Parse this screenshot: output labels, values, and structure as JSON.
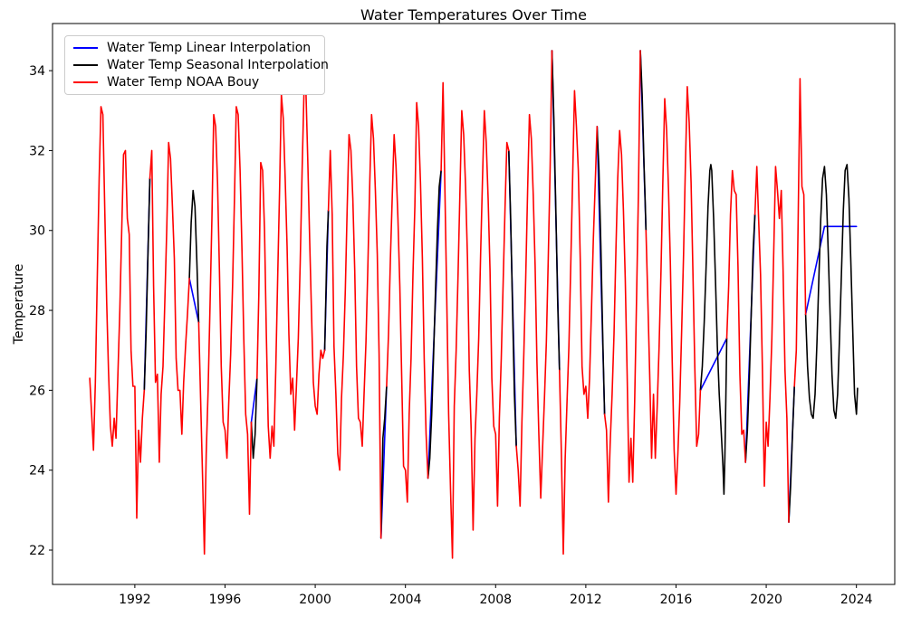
{
  "figure": {
    "title": "Water Temperatures Over Time",
    "ylabel": "Temperature"
  },
  "chart_data": {
    "type": "line",
    "title": "Water Temperatures Over Time",
    "xlabel": "",
    "ylabel": "Temperature",
    "grid": false,
    "legend_position": "upper left",
    "xlim": [
      1988.35,
      2025.7
    ],
    "ylim": [
      21.14,
      35.18
    ],
    "xticks": [
      1992,
      1996,
      2000,
      2004,
      2008,
      2012,
      2016,
      2020,
      2024
    ],
    "yticks": [
      22,
      24,
      26,
      28,
      30,
      32,
      34
    ],
    "series": [
      {
        "name": "Water Temp Linear Interpolation",
        "color": "#0000ff",
        "segments": [
          [
            [
              1992.417,
              26.0
            ],
            [
              1992.667,
              31.3
            ]
          ],
          [
            [
              1994.417,
              28.8
            ],
            [
              1994.833,
              27.7
            ]
          ],
          [
            [
              1997.167,
              25.2
            ],
            [
              1997.417,
              26.3
            ]
          ],
          [
            [
              2000.417,
              27.0
            ],
            [
              2000.583,
              30.5
            ]
          ],
          [
            [
              2002.917,
              22.3
            ],
            [
              2003.167,
              26.1
            ]
          ],
          [
            [
              2005.0,
              23.8
            ],
            [
              2005.583,
              31.5
            ]
          ],
          [
            [
              2008.583,
              32.0
            ],
            [
              2008.917,
              24.6
            ]
          ],
          [
            [
              2010.5,
              34.5
            ],
            [
              2010.833,
              26.5
            ]
          ],
          [
            [
              2012.5,
              32.6
            ],
            [
              2012.833,
              25.4
            ]
          ],
          [
            [
              2014.417,
              34.5
            ],
            [
              2014.667,
              30.0
            ]
          ],
          [
            [
              2017.083,
              26.0
            ],
            [
              2018.25,
              27.3
            ]
          ],
          [
            [
              2019.083,
              24.2
            ],
            [
              2019.5,
              30.4
            ]
          ],
          [
            [
              2021.0,
              22.7
            ],
            [
              2021.25,
              26.1
            ]
          ],
          [
            [
              2021.75,
              27.9
            ],
            [
              2022.583,
              30.1
            ]
          ],
          [
            [
              2022.583,
              30.1
            ],
            [
              2024.0,
              30.1
            ]
          ]
        ]
      },
      {
        "name": "Water Temp Seasonal Interpolation",
        "color": "#000000",
        "segments": [
          [
            [
              1992.417,
              26.0
            ],
            [
              1992.5,
              27.4
            ],
            [
              1992.583,
              29.4
            ],
            [
              1992.667,
              31.3
            ]
          ],
          [
            [
              1994.417,
              28.8
            ],
            [
              1994.5,
              30.2
            ],
            [
              1994.583,
              31.0
            ],
            [
              1994.667,
              30.6
            ],
            [
              1994.75,
              29.2
            ],
            [
              1994.833,
              27.7
            ]
          ],
          [
            [
              1997.167,
              25.2
            ],
            [
              1997.25,
              24.3
            ],
            [
              1997.333,
              24.9
            ],
            [
              1997.417,
              26.3
            ]
          ],
          [
            [
              2000.417,
              27.0
            ],
            [
              2000.467,
              28.2
            ],
            [
              2000.517,
              29.6
            ],
            [
              2000.583,
              30.5
            ]
          ],
          [
            [
              2002.917,
              22.3
            ],
            [
              2003.0,
              24.8
            ],
            [
              2003.083,
              25.3
            ],
            [
              2003.167,
              26.1
            ]
          ],
          [
            [
              2005.0,
              23.8
            ],
            [
              2005.083,
              24.3
            ],
            [
              2005.167,
              25.4
            ],
            [
              2005.25,
              26.9
            ],
            [
              2005.333,
              28.5
            ],
            [
              2005.417,
              30.0
            ],
            [
              2005.5,
              31.1
            ],
            [
              2005.583,
              31.5
            ]
          ],
          [
            [
              2008.583,
              32.0
            ],
            [
              2008.667,
              30.3
            ],
            [
              2008.75,
              28.0
            ],
            [
              2008.833,
              25.9
            ],
            [
              2008.917,
              24.6
            ]
          ],
          [
            [
              2010.5,
              34.5
            ],
            [
              2010.583,
              32.8
            ],
            [
              2010.667,
              30.6
            ],
            [
              2010.75,
              28.2
            ],
            [
              2010.833,
              26.5
            ]
          ],
          [
            [
              2012.5,
              32.6
            ],
            [
              2012.583,
              31.5
            ],
            [
              2012.667,
              29.6
            ],
            [
              2012.75,
              27.3
            ],
            [
              2012.833,
              25.4
            ]
          ],
          [
            [
              2014.417,
              34.5
            ],
            [
              2014.5,
              33.4
            ],
            [
              2014.583,
              31.6
            ],
            [
              2014.625,
              30.9
            ],
            [
              2014.667,
              30.0
            ]
          ],
          [
            [
              2017.083,
              26.0
            ],
            [
              2017.167,
              26.6
            ],
            [
              2017.25,
              27.7
            ],
            [
              2017.333,
              29.1
            ],
            [
              2017.417,
              30.6
            ],
            [
              2017.5,
              31.5
            ],
            [
              2017.542,
              31.65
            ],
            [
              2017.583,
              31.5
            ],
            [
              2017.667,
              30.3
            ],
            [
              2017.75,
              28.8
            ],
            [
              2017.833,
              27.1
            ],
            [
              2017.917,
              25.9
            ],
            [
              2018.0,
              25.0
            ],
            [
              2018.083,
              24.1
            ],
            [
              2018.125,
              23.4
            ],
            [
              2018.167,
              24.3
            ],
            [
              2018.208,
              25.8
            ],
            [
              2018.25,
              27.3
            ]
          ],
          [
            [
              2019.083,
              24.2
            ],
            [
              2019.167,
              25.0
            ],
            [
              2019.25,
              26.3
            ],
            [
              2019.333,
              27.9
            ],
            [
              2019.417,
              29.5
            ],
            [
              2019.5,
              30.4
            ]
          ],
          [
            [
              2021.0,
              22.7
            ],
            [
              2021.083,
              23.6
            ],
            [
              2021.167,
              24.9
            ],
            [
              2021.25,
              26.1
            ]
          ],
          [
            [
              2021.75,
              27.9
            ],
            [
              2021.833,
              26.6
            ],
            [
              2021.917,
              25.8
            ],
            [
              2022.0,
              25.4
            ],
            [
              2022.083,
              25.3
            ],
            [
              2022.167,
              25.9
            ],
            [
              2022.25,
              27.2
            ],
            [
              2022.333,
              28.8
            ],
            [
              2022.417,
              30.3
            ],
            [
              2022.5,
              31.3
            ],
            [
              2022.583,
              31.6
            ],
            [
              2022.667,
              30.9
            ],
            [
              2022.75,
              29.5
            ],
            [
              2022.833,
              27.9
            ],
            [
              2022.917,
              26.4
            ],
            [
              2023.0,
              25.5
            ],
            [
              2023.083,
              25.3
            ],
            [
              2023.167,
              25.9
            ],
            [
              2023.25,
              27.3
            ],
            [
              2023.333,
              28.9
            ],
            [
              2023.417,
              30.5
            ],
            [
              2023.5,
              31.5
            ],
            [
              2023.583,
              31.65
            ],
            [
              2023.667,
              30.8
            ],
            [
              2023.75,
              29.3
            ],
            [
              2023.833,
              27.6
            ],
            [
              2023.917,
              25.9
            ],
            [
              2024.0,
              25.4
            ],
            [
              2024.05,
              26.05
            ]
          ]
        ]
      },
      {
        "name": "Water Temp NOAA Bouy",
        "color": "#ff0000",
        "x0": 1990.0,
        "dx": 0.0833333,
        "values": [
          26.3,
          25.4,
          24.5,
          26.2,
          28.8,
          31.3,
          33.1,
          32.9,
          30.5,
          28.2,
          26.5,
          25.1,
          24.6,
          25.3,
          24.8,
          26.4,
          28.0,
          30.0,
          31.9,
          32.0,
          30.3,
          29.9,
          27.0,
          26.1,
          26.1,
          22.8,
          25.0,
          24.2,
          25.3,
          26.0,
          null,
          null,
          31.3,
          32.0,
          28.6,
          26.2,
          26.4,
          24.2,
          25.9,
          26.6,
          28.3,
          30.1,
          32.2,
          31.8,
          30.6,
          29.3,
          26.8,
          26.0,
          26.0,
          24.9,
          26.2,
          27.1,
          27.9,
          28.8,
          null,
          null,
          null,
          null,
          27.7,
          25.8,
          23.9,
          21.9,
          24.4,
          26.0,
          28.1,
          30.3,
          32.9,
          32.6,
          31.2,
          29.0,
          26.6,
          25.2,
          25.0,
          24.3,
          25.7,
          26.9,
          28.6,
          30.8,
          33.1,
          32.9,
          31.5,
          29.5,
          27.3,
          25.4,
          24.9,
          22.9,
          25.2,
          null,
          null,
          26.3,
          28.4,
          31.7,
          31.5,
          30.0,
          27.4,
          25.1,
          24.3,
          25.1,
          24.6,
          26.5,
          28.8,
          31.0,
          33.4,
          32.8,
          31.3,
          29.6,
          27.4,
          25.9,
          26.3,
          25.0,
          26.1,
          27.3,
          29.2,
          31.5,
          33.4,
          33.6,
          31.8,
          29.8,
          28.0,
          26.2,
          25.6,
          25.4,
          26.4,
          27.0,
          26.8,
          27.0,
          null,
          30.5,
          32.0,
          30.4,
          27.1,
          25.9,
          24.4,
          24.0,
          25.8,
          26.9,
          28.5,
          30.6,
          32.4,
          32.0,
          30.8,
          29.0,
          26.6,
          25.3,
          25.2,
          24.6,
          25.9,
          27.2,
          29.1,
          31.2,
          32.9,
          32.3,
          31.0,
          29.4,
          26.9,
          22.3,
          null,
          null,
          26.1,
          27.4,
          29.3,
          30.9,
          32.4,
          31.6,
          30.3,
          28.6,
          26.4,
          24.1,
          24.0,
          23.2,
          25.4,
          26.8,
          28.9,
          30.6,
          33.2,
          32.6,
          31.2,
          29.3,
          26.8,
          24.9,
          23.8,
          null,
          null,
          null,
          null,
          null,
          null,
          31.5,
          33.7,
          31.0,
          28.3,
          25.4,
          23.5,
          21.8,
          25.6,
          27.0,
          28.9,
          31.0,
          33.0,
          32.4,
          31.1,
          29.3,
          26.5,
          25.0,
          22.5,
          24.8,
          25.9,
          27.3,
          29.4,
          31.3,
          33.0,
          32.2,
          30.8,
          29.0,
          26.3,
          25.1,
          24.9,
          23.1,
          25.3,
          26.8,
          28.7,
          30.6,
          32.2,
          32.0,
          null,
          null,
          null,
          24.6,
          24.0,
          23.1,
          25.2,
          26.9,
          28.8,
          31.0,
          32.9,
          32.3,
          30.9,
          29.1,
          26.7,
          24.9,
          23.3,
          24.6,
          25.8,
          27.2,
          29.3,
          31.6,
          34.5,
          null,
          null,
          null,
          26.5,
          24.4,
          21.9,
          24.3,
          25.7,
          27.1,
          29.2,
          31.4,
          33.5,
          32.6,
          31.5,
          29.3,
          26.6,
          25.9,
          26.1,
          25.3,
          26.3,
          28.0,
          29.8,
          31.2,
          32.6,
          null,
          null,
          null,
          25.4,
          25.0,
          23.2,
          24.7,
          25.9,
          27.4,
          29.5,
          31.3,
          32.5,
          31.9,
          30.5,
          28.8,
          26.4,
          23.7,
          24.8,
          23.7,
          25.7,
          28.3,
          31.0,
          34.5,
          null,
          null,
          30.0,
          28.3,
          26.4,
          24.3,
          25.9,
          24.3,
          25.6,
          27.1,
          29.0,
          31.2,
          33.3,
          32.5,
          31.0,
          29.2,
          26.7,
          24.5,
          23.4,
          24.4,
          25.7,
          27.5,
          29.4,
          31.6,
          33.6,
          32.7,
          31.2,
          29.0,
          26.6,
          24.6,
          24.9,
          26.0,
          null,
          null,
          null,
          null,
          null,
          null,
          null,
          null,
          null,
          null,
          null,
          null,
          null,
          27.3,
          28.6,
          30.4,
          31.5,
          31.0,
          30.9,
          29.1,
          26.4,
          24.9,
          25.0,
          24.2,
          null,
          null,
          null,
          null,
          30.4,
          31.6,
          30.2,
          28.9,
          26.5,
          23.6,
          25.2,
          24.6,
          25.8,
          27.3,
          29.5,
          31.6,
          31.0,
          30.3,
          31.0,
          29.0,
          26.5,
          25.3,
          22.7,
          null,
          null,
          26.1,
          27.0,
          30.2,
          33.8,
          31.1,
          30.9,
          27.9
        ]
      }
    ]
  }
}
